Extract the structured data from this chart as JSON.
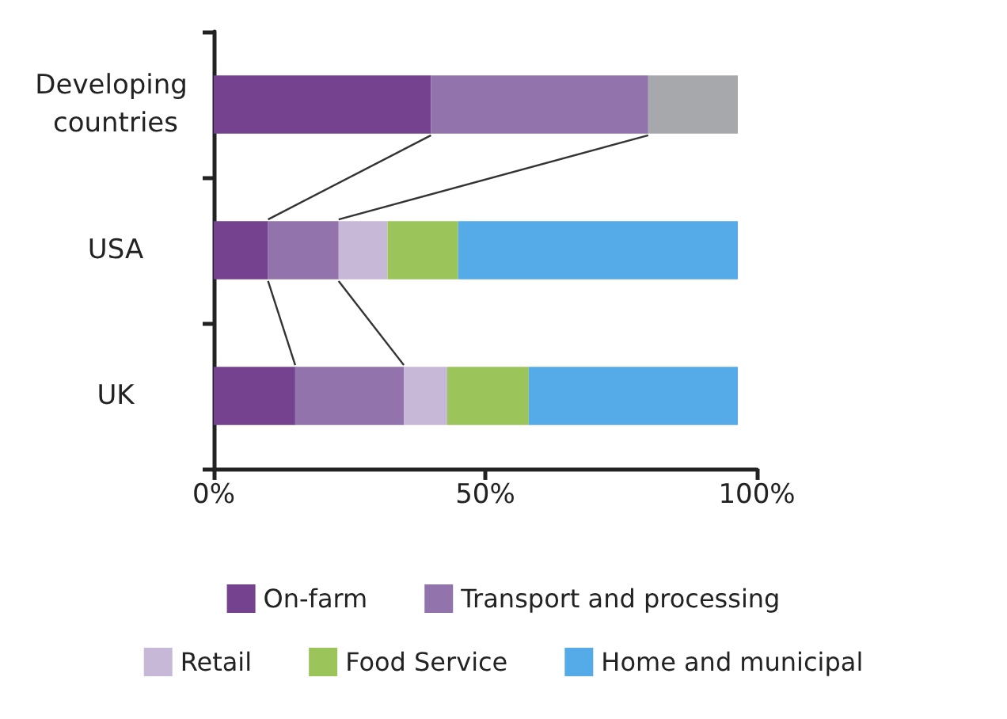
{
  "chart_data": {
    "type": "bar",
    "orientation": "horizontal",
    "stacked": true,
    "categories": [
      "Developing countries",
      "USA",
      "UK"
    ],
    "series": [
      {
        "name": "On-farm",
        "color": "#75428f",
        "values": [
          40,
          10,
          15
        ]
      },
      {
        "name": "Transport and processing",
        "color": "#9273ab",
        "values": [
          40,
          13,
          20
        ]
      },
      {
        "name": "Retail",
        "color": "#c8b8d8",
        "values": [
          null,
          9,
          8
        ]
      },
      {
        "name": "Food Service",
        "color": "#9bc45a",
        "values": [
          null,
          13,
          15
        ]
      },
      {
        "name": "Home and municipal",
        "color": "#55abe8",
        "values": [
          null,
          51.5,
          38.5
        ]
      },
      {
        "color": "#a7a8ab",
        "values": [
          16.5,
          null,
          null
        ]
      }
    ],
    "xlim": [
      0,
      100
    ],
    "xticks": [
      {
        "value": 0,
        "label": "0%"
      },
      {
        "value": 50,
        "label": "50%"
      },
      {
        "value": 100,
        "label": "100%"
      }
    ],
    "grid": false,
    "legend": "bottom"
  }
}
